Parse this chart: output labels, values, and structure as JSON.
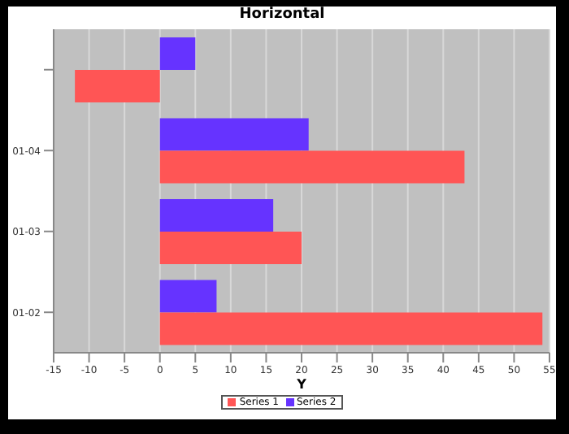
{
  "chart_data": {
    "type": "bar",
    "orientation": "horizontal",
    "title": "Horizontal",
    "xlabel": "Y",
    "categories": [
      null,
      "01-04",
      "01-03",
      "01-02"
    ],
    "series": [
      {
        "name": "Series 1",
        "color": "#ff5555",
        "values": [
          -12,
          43,
          20,
          54
        ]
      },
      {
        "name": "Series 2",
        "color": "#6633ff",
        "values": [
          5,
          21,
          16,
          8
        ]
      }
    ],
    "xlim": [
      -15,
      55
    ],
    "xticks": [
      -15,
      -10,
      -5,
      0,
      5,
      10,
      15,
      20,
      25,
      30,
      35,
      40,
      45,
      50,
      55
    ],
    "grid": "x",
    "legend": "bottom"
  }
}
